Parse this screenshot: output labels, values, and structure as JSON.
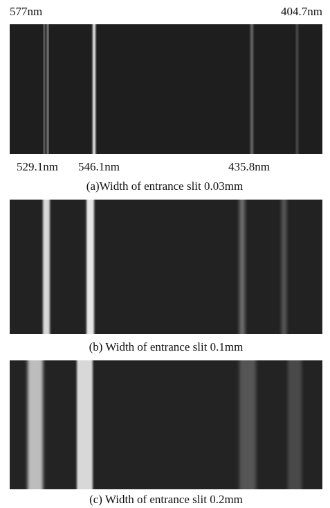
{
  "panels": [
    {
      "labels": {
        "top_left": "577nm",
        "top_right": "404.7nm",
        "bottom": [
          "529.1nm",
          "546.1nm",
          "435.8nm"
        ]
      },
      "caption": "(a)Width of entrance slit 0.03mm"
    },
    {
      "caption": "(b) Width of entrance slit 0.1mm"
    },
    {
      "caption": "(c) Width of entrance slit 0.2mm"
    }
  ]
}
